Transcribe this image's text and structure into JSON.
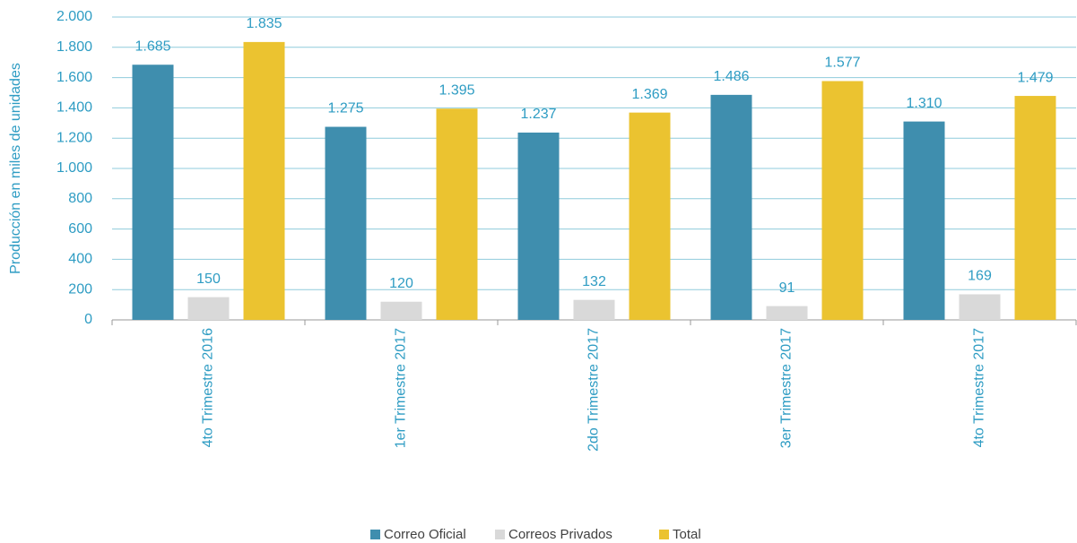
{
  "chart_data": {
    "type": "bar",
    "y_label": "Producción en miles de unidades",
    "categories": [
      "4to Trimestre 2016",
      "1er Trimestre 2017",
      "2do Trimestre 2017",
      "3er Trimestre 2017",
      "4to Trimestre 2017"
    ],
    "series": [
      {
        "name": "Correo Oficial",
        "color": "#3f8eae",
        "values": [
          1685,
          1275,
          1237,
          1486,
          1310
        ],
        "value_labels": [
          "1.685",
          "1.275",
          "1.237",
          "1.486",
          "1.310"
        ]
      },
      {
        "name": "Correos Privados",
        "color": "#d9d9d9",
        "values": [
          150,
          120,
          132,
          91,
          169
        ],
        "value_labels": [
          "150",
          "120",
          "132",
          "91",
          "169"
        ]
      },
      {
        "name": "Total",
        "color": "#ebc330",
        "values": [
          1835,
          1395,
          1369,
          1577,
          1479
        ],
        "value_labels": [
          "1.835",
          "1.395",
          "1.369",
          "1.577",
          "1.479"
        ]
      }
    ],
    "ylim": [
      0,
      2000
    ],
    "yticks": [
      0,
      200,
      400,
      600,
      800,
      {
        "value": 1000,
        "label": "1.000"
      },
      {
        "value": 1200,
        "label": "1.200"
      },
      {
        "value": 1400,
        "label": "1.400"
      },
      {
        "value": 1600,
        "label": "1.600"
      },
      {
        "value": 1800,
        "label": "1.800"
      },
      {
        "value": 2000,
        "label": "2.000"
      }
    ],
    "grid": true,
    "legend": "bottom"
  }
}
